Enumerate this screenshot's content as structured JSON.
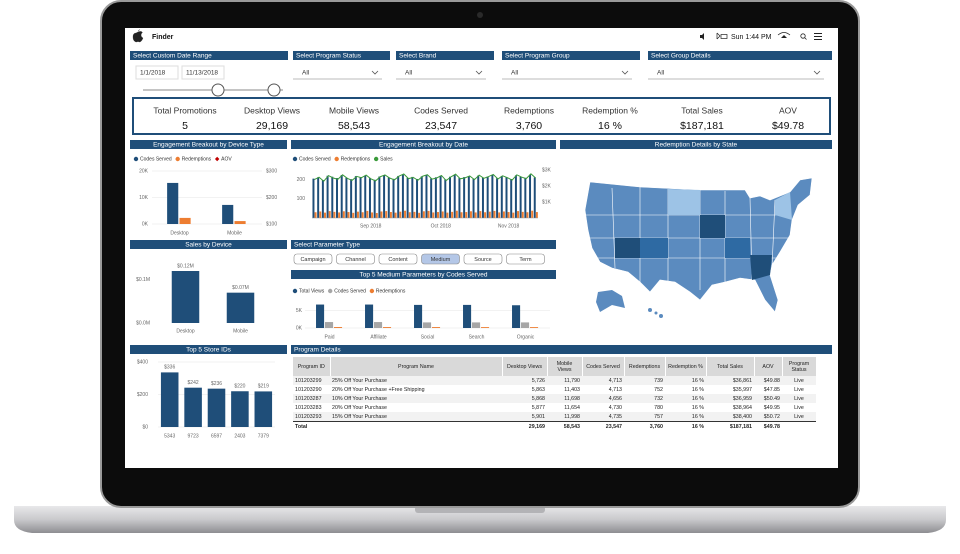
{
  "menubar": {
    "app": "Finder",
    "clock": "Sun 1:44 PM"
  },
  "filters": {
    "date_range": {
      "label": "Select Custom Date Range",
      "start": "1/1/2018",
      "end": "11/13/2018"
    },
    "dropdowns": [
      {
        "label": "Select Program Status",
        "value": "All"
      },
      {
        "label": "Select Brand",
        "value": "All"
      },
      {
        "label": "Select Program Group",
        "value": "All"
      },
      {
        "label": "Select Group Details",
        "value": "All"
      }
    ]
  },
  "kpis": [
    {
      "label": "Total Promotions",
      "value": "5"
    },
    {
      "label": "Desktop Views",
      "value": "29,169"
    },
    {
      "label": "Mobile Views",
      "value": "58,543"
    },
    {
      "label": "Codes Served",
      "value": "23,547"
    },
    {
      "label": "Redemptions",
      "value": "3,760"
    },
    {
      "label": "Redemption %",
      "value": "16 %"
    },
    {
      "label": "Total Sales",
      "value": "$187,181"
    },
    {
      "label": "AOV",
      "value": "$49.78"
    }
  ],
  "device_chart": {
    "type": "bar",
    "title": "Engagement Breakout by Device Type",
    "categories": [
      "Desktop",
      "Mobile"
    ],
    "series": [
      {
        "name": "Codes Served",
        "color": "#1f4e79",
        "values": [
          15500,
          7200
        ]
      },
      {
        "name": "Redemptions",
        "color": "#ed7d31",
        "values": [
          2300,
          1100
        ]
      },
      {
        "name": "AOV",
        "color": "#c00000",
        "axis": "y2",
        "values": [
          null,
          null
        ]
      }
    ],
    "ylim": [
      0,
      20000
    ],
    "yticks": [
      {
        "value": 0,
        "label": "0K"
      },
      {
        "value": 10000,
        "label": "10K"
      },
      {
        "value": 20000,
        "label": "20K"
      }
    ],
    "y2lim": [
      100,
      300
    ],
    "y2ticks": [
      {
        "value": 100,
        "label": "$100"
      },
      {
        "value": 200,
        "label": "$200"
      },
      {
        "value": 300,
        "label": "$300"
      }
    ],
    "grid": true
  },
  "date_chart": {
    "type": "bar-line",
    "title": "Engagement Breakout by Date",
    "x_labels": [
      "Sep 2018",
      "Oct 2018",
      "Nov 2018"
    ],
    "series": [
      {
        "name": "Codes Served",
        "color": "#1f4e79",
        "values": [
          205,
          212,
          198,
          220,
          215,
          208,
          224,
          210,
          202,
          218,
          213,
          221,
          207,
          199,
          216,
          222,
          211,
          204,
          219,
          226,
          209,
          214,
          203,
          217,
          223,
          206,
          212,
          220,
          201,
          215,
          225,
          208,
          213,
          218,
          205,
          221,
          210,
          216,
          224,
          207,
          219,
          212,
          203,
          222,
          214,
          209,
          226,
          211
        ]
      },
      {
        "name": "Redemptions",
        "color": "#ed7d31",
        "values": [
          30,
          34,
          28,
          36,
          32,
          29,
          35,
          31,
          27,
          33,
          30,
          37,
          29,
          26,
          34,
          36,
          31,
          28,
          33,
          38,
          30,
          32,
          27,
          35,
          37,
          29,
          31,
          34,
          28,
          32,
          38,
          30,
          31,
          35,
          29,
          36,
          30,
          33,
          37,
          29,
          34,
          31,
          28,
          36,
          32,
          30,
          38,
          31
        ]
      },
      {
        "name": "Sales",
        "color": "#3a9a3a",
        "axis": "y2",
        "values": [
          2400,
          2550,
          2300,
          2650,
          2500,
          2420,
          2700,
          2480,
          2350,
          2600,
          2520,
          2680,
          2450,
          2320,
          2580,
          2690,
          2500,
          2380,
          2620,
          2750,
          2460,
          2540,
          2360,
          2610,
          2710,
          2430,
          2500,
          2660,
          2340,
          2570,
          2740,
          2450,
          2510,
          2630,
          2400,
          2680,
          2480,
          2590,
          2720,
          2440,
          2640,
          2520,
          2370,
          2700,
          2560,
          2460,
          2760,
          2500
        ]
      }
    ],
    "ylim": [
      0,
      250
    ],
    "yticks": [
      100,
      200
    ],
    "y2lim": [
      0,
      3000
    ],
    "y2ticks": [
      {
        "value": 1000,
        "label": "$1K"
      },
      {
        "value": 2000,
        "label": "$2K"
      },
      {
        "value": 3000,
        "label": "$3K"
      }
    ]
  },
  "map": {
    "title": "Redemption Details by State"
  },
  "sales_device": {
    "type": "bar",
    "title": "Sales by Device",
    "categories": [
      "Desktop",
      "Mobile"
    ],
    "values": [
      120000,
      70000
    ],
    "value_labels": [
      "$0.12M",
      "$0.07M"
    ],
    "color": "#1f4e79",
    "ylim": [
      0,
      150000
    ],
    "yticks": [
      {
        "value": 0,
        "label": "$0.0M"
      },
      {
        "value": 100000,
        "label": "$0.1M"
      }
    ]
  },
  "parameter_type": {
    "title": "Select Parameter Type",
    "options": [
      "Campaign",
      "Channel",
      "Content",
      "Medium",
      "Source",
      "Term"
    ],
    "selected": 3
  },
  "medium_chart": {
    "type": "bar",
    "title": "Top 5 Medium Parameters by Codes Served",
    "categories": [
      "Paid",
      "Affiliate",
      "Social",
      "Search",
      "Organic"
    ],
    "series": [
      {
        "name": "Total Views",
        "color": "#1f4e79",
        "values": [
          6700,
          6700,
          6600,
          6600,
          6500
        ]
      },
      {
        "name": "Codes Served",
        "color": "#a6a6a6",
        "values": [
          1700,
          1700,
          1600,
          1600,
          1600
        ]
      },
      {
        "name": "Redemptions",
        "color": "#ed7d31",
        "values": [
          270,
          260,
          260,
          250,
          250
        ]
      }
    ],
    "ylim": [
      0,
      8000
    ],
    "yticks": [
      {
        "value": 0,
        "label": "0K"
      },
      {
        "value": 5000,
        "label": "5K"
      }
    ]
  },
  "store_chart": {
    "type": "bar",
    "title": "Top 5 Store IDs",
    "categories": [
      "5343",
      "9723",
      "6597",
      "2403",
      "7379"
    ],
    "values": [
      336,
      242,
      236,
      220,
      219
    ],
    "value_labels": [
      "$336",
      "$242",
      "$236",
      "$220",
      "$219"
    ],
    "color": "#1f4e79",
    "ylim": [
      0,
      400
    ],
    "yticks": [
      {
        "value": 0,
        "label": "$0"
      },
      {
        "value": 200,
        "label": "$200"
      },
      {
        "value": 400,
        "label": "$400"
      }
    ]
  },
  "table": {
    "title": "Program Details",
    "columns": [
      "Program ID",
      "Program Name",
      "Desktop Views",
      "Mobile Views",
      "Codes Served",
      "Redemptions",
      "Redemption %",
      "Total Sales",
      "AOV",
      "Program Status"
    ],
    "rows": [
      [
        "101203299",
        "25% Off Your Purchase",
        "5,726",
        "11,790",
        "4,713",
        "739",
        "16 %",
        "$36,861",
        "$49.88",
        "Live"
      ],
      [
        "101203290",
        "20% Off Your Purchase +Free Shipping",
        "5,863",
        "11,403",
        "4,713",
        "752",
        "16 %",
        "$35,997",
        "$47.85",
        "Live"
      ],
      [
        "101203287",
        "10% Off Your Purchase",
        "5,868",
        "11,698",
        "4,656",
        "732",
        "16 %",
        "$36,959",
        "$50.49",
        "Live"
      ],
      [
        "101203283",
        "20% Off Your Purchase",
        "5,877",
        "11,654",
        "4,730",
        "780",
        "16 %",
        "$38,964",
        "$49.95",
        "Live"
      ],
      [
        "101203293",
        "15% Off Your Purchase",
        "5,901",
        "11,998",
        "4,735",
        "757",
        "16 %",
        "$38,400",
        "$50.72",
        "Live"
      ]
    ],
    "total": [
      "Total",
      "29,169",
      "58,543",
      "23,547",
      "3,760",
      "16 %",
      "$187,181",
      "$49.78"
    ]
  }
}
